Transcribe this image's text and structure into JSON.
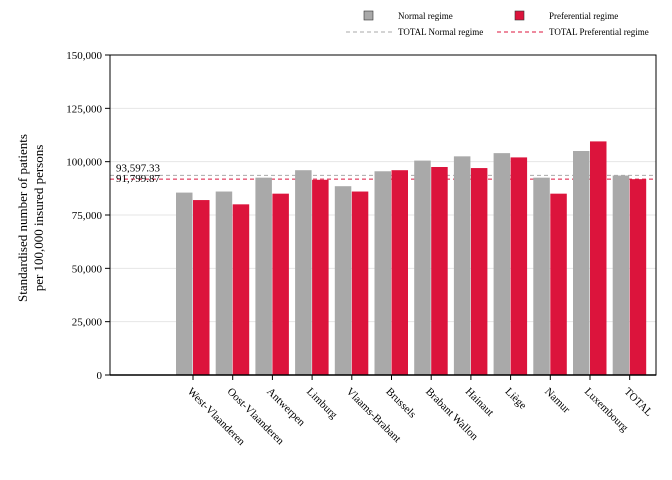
{
  "chart_data": {
    "type": "bar",
    "title": "",
    "xlabel": "",
    "ylabel_lines": [
      "Standardised number of patients",
      "per 100,000 insured persons"
    ],
    "ylim": [
      0,
      150000
    ],
    "yticks": [
      0,
      25000,
      50000,
      75000,
      100000,
      125000,
      150000
    ],
    "ytick_labels": [
      "0",
      "25,000",
      "50,000",
      "75,000",
      "100,000",
      "125,000",
      "150,000"
    ],
    "grid": true,
    "legend_position": "top-right",
    "categories": [
      "West-Vlaanderen",
      "Oost-Vlaanderen",
      "Antwerpen",
      "Limburg",
      "Vlaams-Brabant",
      "Brussels",
      "Brabant Wallon",
      "Hainaut",
      "Liège",
      "Namur",
      "Luxembourg",
      "TOTAL"
    ],
    "series": [
      {
        "name": "Normal regime",
        "color": "#a9a9a9",
        "values": [
          85500,
          86000,
          92500,
          96000,
          88500,
          95500,
          100500,
          102500,
          104000,
          92500,
          105000,
          93500
        ]
      },
      {
        "name": "Preferential regime",
        "color": "#dc143c",
        "values": [
          82000,
          80000,
          85000,
          91500,
          86000,
          96000,
          97500,
          97000,
          102000,
          85000,
          109500,
          91800
        ]
      }
    ],
    "reference_lines": [
      {
        "name": "TOTAL Normal regime",
        "value": 93597.33,
        "label": "93,597.33",
        "color": "#a9a9a9",
        "style": "dashed"
      },
      {
        "name": "TOTAL Preferential regime",
        "value": 91799.87,
        "label": "91,799.87",
        "color": "#dc143c",
        "style": "dashed"
      }
    ]
  }
}
